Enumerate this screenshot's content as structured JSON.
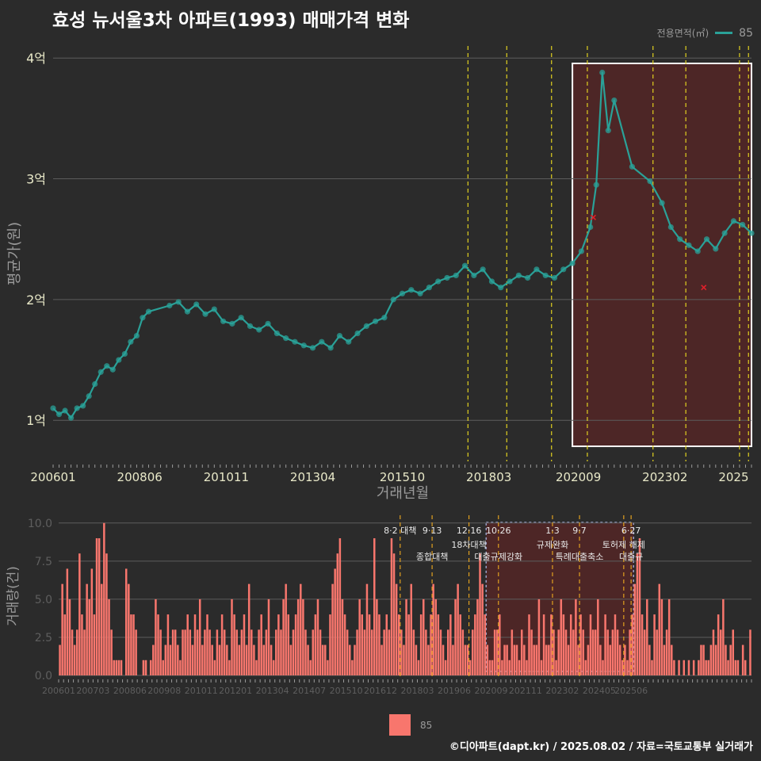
{
  "title": "효성 뉴서울3차 아파트(1993) 매매가격 변화",
  "legend": {
    "title": "전용면적(㎡)",
    "label": "85"
  },
  "caption": "©디아파트(dapt.kr) / 2025.08.02 / 자료=국토교통부 실거래가",
  "colors": {
    "background": "#2b2b2b",
    "series": "#2aa198",
    "bars": "#f8766d",
    "policy": "#e0d020",
    "highlight": "#5a2626",
    "marker": "#e0202a"
  },
  "chart_data": [
    {
      "type": "line",
      "xlabel": "거래년월",
      "ylabel": "평균가(원)",
      "x_ticks": [
        "200601",
        "200806",
        "201011",
        "201304",
        "201510",
        "201803",
        "202009",
        "202302",
        "2025"
      ],
      "y_ticks": [
        {
          "value": 1,
          "label": "1억"
        },
        {
          "value": 2,
          "label": "2억"
        },
        {
          "value": 3,
          "label": "3억"
        },
        {
          "value": 4,
          "label": "4억"
        }
      ],
      "xlim": [
        "2006-01",
        "2025-07"
      ],
      "ylim": [
        0.66,
        4.1
      ],
      "series": [
        {
          "name": "85",
          "points": [
            [
              "2006-01",
              1.1
            ],
            [
              "2006-03",
              1.05
            ],
            [
              "2006-05",
              1.08
            ],
            [
              "2006-07",
              1.02
            ],
            [
              "2006-09",
              1.1
            ],
            [
              "2006-11",
              1.12
            ],
            [
              "2007-01",
              1.2
            ],
            [
              "2007-03",
              1.3
            ],
            [
              "2007-05",
              1.4
            ],
            [
              "2007-07",
              1.45
            ],
            [
              "2007-09",
              1.42
            ],
            [
              "2007-11",
              1.5
            ],
            [
              "2008-01",
              1.55
            ],
            [
              "2008-03",
              1.65
            ],
            [
              "2008-05",
              1.7
            ],
            [
              "2008-07",
              1.85
            ],
            [
              "2008-09",
              1.9
            ],
            [
              "2009-04",
              1.95
            ],
            [
              "2009-07",
              1.98
            ],
            [
              "2009-10",
              1.9
            ],
            [
              "2010-01",
              1.96
            ],
            [
              "2010-04",
              1.88
            ],
            [
              "2010-07",
              1.92
            ],
            [
              "2010-10",
              1.82
            ],
            [
              "2011-01",
              1.8
            ],
            [
              "2011-04",
              1.85
            ],
            [
              "2011-07",
              1.78
            ],
            [
              "2011-10",
              1.75
            ],
            [
              "2012-01",
              1.8
            ],
            [
              "2012-04",
              1.72
            ],
            [
              "2012-07",
              1.68
            ],
            [
              "2012-10",
              1.65
            ],
            [
              "2013-01",
              1.62
            ],
            [
              "2013-04",
              1.6
            ],
            [
              "2013-07",
              1.65
            ],
            [
              "2013-10",
              1.6
            ],
            [
              "2014-01",
              1.7
            ],
            [
              "2014-04",
              1.65
            ],
            [
              "2014-07",
              1.72
            ],
            [
              "2014-10",
              1.78
            ],
            [
              "2015-01",
              1.82
            ],
            [
              "2015-04",
              1.85
            ],
            [
              "2015-07",
              2.0
            ],
            [
              "2015-10",
              2.05
            ],
            [
              "2016-01",
              2.08
            ],
            [
              "2016-04",
              2.05
            ],
            [
              "2016-07",
              2.1
            ],
            [
              "2016-10",
              2.15
            ],
            [
              "2017-01",
              2.18
            ],
            [
              "2017-04",
              2.2
            ],
            [
              "2017-07",
              2.28
            ],
            [
              "2017-10",
              2.2
            ],
            [
              "2018-01",
              2.25
            ],
            [
              "2018-04",
              2.15
            ],
            [
              "2018-07",
              2.1
            ],
            [
              "2018-10",
              2.15
            ],
            [
              "2019-01",
              2.2
            ],
            [
              "2019-04",
              2.18
            ],
            [
              "2019-07",
              2.25
            ],
            [
              "2019-10",
              2.2
            ],
            [
              "2020-01",
              2.18
            ],
            [
              "2020-04",
              2.25
            ],
            [
              "2020-07",
              2.3
            ],
            [
              "2020-10",
              2.4
            ],
            [
              "2021-01",
              2.6
            ],
            [
              "2021-03",
              2.95
            ],
            [
              "2021-05",
              3.88
            ],
            [
              "2021-07",
              3.4
            ],
            [
              "2021-09",
              3.65
            ],
            [
              "2022-03",
              3.1
            ],
            [
              "2022-09",
              2.98
            ],
            [
              "2023-01",
              2.8
            ],
            [
              "2023-04",
              2.6
            ],
            [
              "2023-07",
              2.5
            ],
            [
              "2023-10",
              2.45
            ],
            [
              "2024-01",
              2.4
            ],
            [
              "2024-04",
              2.5
            ],
            [
              "2024-07",
              2.42
            ],
            [
              "2024-10",
              2.55
            ],
            [
              "2025-01",
              2.65
            ],
            [
              "2025-04",
              2.62
            ],
            [
              "2025-07",
              2.55
            ]
          ]
        }
      ],
      "cancelled_points": [
        [
          "2021-02",
          2.68
        ],
        [
          "2024-03",
          2.1
        ]
      ],
      "policy_lines": [
        "2017-08",
        "2018-09",
        "2019-12",
        "2020-12",
        "2022-10",
        "2023-09",
        "2025-03",
        "2025-06"
      ],
      "highlight_range": [
        "2020-07",
        "2025-07"
      ]
    },
    {
      "type": "bar",
      "xlabel": "",
      "ylabel": "거래량(건)",
      "x_ticks": [
        "200601",
        "200703",
        "200806",
        "200908",
        "201011",
        "201201",
        "201304",
        "201407",
        "201510",
        "201612",
        "201803",
        "201906",
        "202009",
        "202111",
        "202302",
        "202405",
        "202506"
      ],
      "y_ticks": [
        {
          "value": 0,
          "label": "0.0"
        },
        {
          "value": 2.5,
          "label": "2.5"
        },
        {
          "value": 5,
          "label": "5.0"
        },
        {
          "value": 7.5,
          "label": "7.5"
        },
        {
          "value": 10,
          "label": "10.0"
        }
      ],
      "ylim": [
        0,
        10.3
      ],
      "values": [
        2,
        6,
        4,
        7,
        5,
        3,
        2,
        3,
        8,
        4,
        3,
        6,
        5,
        7,
        4,
        9,
        9,
        6,
        10,
        8,
        5,
        3,
        1,
        1,
        1,
        1,
        0,
        7,
        6,
        4,
        4,
        3,
        0,
        0,
        1,
        1,
        0,
        1,
        2,
        5,
        4,
        3,
        1,
        2,
        4,
        2,
        3,
        3,
        2,
        1,
        3,
        3,
        4,
        3,
        2,
        4,
        3,
        5,
        2,
        3,
        4,
        3,
        2,
        1,
        3,
        2,
        4,
        3,
        2,
        1,
        5,
        4,
        3,
        2,
        3,
        4,
        2,
        6,
        3,
        2,
        1,
        3,
        4,
        2,
        3,
        5,
        2,
        1,
        3,
        4,
        3,
        5,
        6,
        4,
        2,
        3,
        4,
        5,
        6,
        5,
        3,
        2,
        1,
        3,
        4,
        5,
        3,
        2,
        2,
        1,
        4,
        6,
        7,
        8,
        9,
        5,
        4,
        3,
        2,
        1,
        2,
        3,
        5,
        4,
        3,
        6,
        4,
        3,
        9,
        5,
        4,
        2,
        3,
        4,
        3,
        9,
        8,
        6,
        4,
        3,
        2,
        5,
        4,
        6,
        3,
        2,
        1,
        4,
        5,
        3,
        2,
        4,
        6,
        5,
        4,
        3,
        2,
        1,
        3,
        4,
        2,
        5,
        6,
        4,
        3,
        2,
        2,
        1,
        3,
        4,
        5,
        8,
        6,
        4,
        2,
        1,
        1,
        3,
        3,
        4,
        1,
        2,
        2,
        1,
        3,
        2,
        2,
        1,
        3,
        2,
        1,
        4,
        3,
        2,
        2,
        5,
        1,
        4,
        2,
        2,
        4,
        3,
        1,
        3,
        5,
        4,
        3,
        2,
        4,
        3,
        5,
        2,
        4,
        3,
        1,
        2,
        4,
        3,
        3,
        5,
        2,
        1,
        4,
        3,
        2,
        3,
        4,
        3,
        2,
        1,
        2,
        1,
        3,
        4,
        6,
        8,
        9,
        4,
        3,
        5,
        2,
        1,
        4,
        3,
        6,
        5,
        2,
        3,
        5,
        2,
        1,
        0,
        1,
        0,
        1,
        0,
        1,
        0,
        1,
        0,
        1,
        2,
        2,
        1,
        1,
        2,
        3,
        2,
        4,
        3,
        5,
        2,
        1,
        2,
        3,
        1,
        1,
        0,
        2,
        1,
        0,
        3
      ],
      "policy_events": [
        {
          "month": "2017-08",
          "line1": "8·2 대책",
          "line2": ""
        },
        {
          "month": "2018-09",
          "line1": "9·13",
          "line2": "종합대책"
        },
        {
          "month": "2019-12",
          "line1": "12·16",
          "line2": "18차대책"
        },
        {
          "month": "2020-12",
          "line1": "10·26",
          "line2": "대출규제강화"
        },
        {
          "month": "2022-10",
          "line1": "1·3",
          "line2": "규제완화"
        },
        {
          "month": "2023-09",
          "line1": "9·7",
          "line2": "특례대출축소"
        },
        {
          "month": "2025-03",
          "line1": "",
          "line2": "토허제 해제"
        },
        {
          "month": "2025-06",
          "line1": "6·27",
          "line2": "대출규"
        }
      ],
      "highlight_range": [
        "2020-07",
        "2025-07"
      ]
    }
  ]
}
